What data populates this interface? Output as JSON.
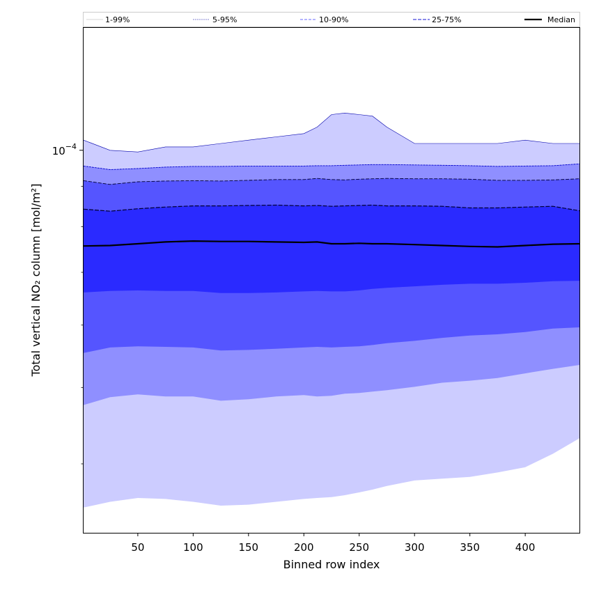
{
  "chart_data": {
    "type": "area",
    "xlabel": "Binned row index",
    "ylabel": "Total vertical NO₂ column [mol/m²]",
    "y_scale": "log",
    "xlim": [
      1,
      449
    ],
    "ylim": [
      3.27e-05,
      0.000143
    ],
    "x_ticks": [
      50,
      100,
      150,
      200,
      250,
      300,
      350,
      400
    ],
    "y_tick_labels": [
      {
        "value": 0.0001,
        "mantissa": "10",
        "exponent": "−4"
      }
    ],
    "grid": false,
    "legend": {
      "placement": "top",
      "entries": [
        {
          "label": "1-99%",
          "style": "band",
          "color": "#ccccff"
        },
        {
          "label": "5-95%",
          "style": "band",
          "color": "#8f8fff"
        },
        {
          "label": "10-90%",
          "style": "band",
          "color": "#5555ff"
        },
        {
          "label": "25-75%",
          "style": "band",
          "color": "#2a2aff"
        },
        {
          "label": "Median",
          "style": "line",
          "color": "#000000"
        }
      ]
    },
    "x": [
      1,
      25,
      50,
      75,
      100,
      125,
      150,
      175,
      200,
      212,
      225,
      237,
      250,
      262,
      275,
      300,
      325,
      350,
      375,
      400,
      425,
      449
    ],
    "series": [
      {
        "name": "1-99%",
        "color": "#ccccff",
        "upper": [
          0.000103,
          0.0001,
          9.95e-05,
          0.000101,
          0.000101,
          0.000102,
          0.000103,
          0.000104,
          0.000105,
          0.000107,
          0.000111,
          0.0001115,
          0.000111,
          0.0001105,
          0.000107,
          0.000102,
          0.000102,
          0.000102,
          0.000102,
          0.000103,
          0.000102,
          0.000102
        ],
        "lower": [
          3.52e-05,
          3.58e-05,
          3.62e-05,
          3.61e-05,
          3.58e-05,
          3.54e-05,
          3.55e-05,
          3.58e-05,
          3.61e-05,
          3.62e-05,
          3.63e-05,
          3.65e-05,
          3.68e-05,
          3.71e-05,
          3.75e-05,
          3.81e-05,
          3.83e-05,
          3.85e-05,
          3.9e-05,
          3.96e-05,
          4.12e-05,
          4.31e-05
        ]
      },
      {
        "name": "5-95%",
        "color": "#8f8fff",
        "upper": [
          9.55e-05,
          9.45e-05,
          9.48e-05,
          9.52e-05,
          9.54e-05,
          9.54e-05,
          9.55e-05,
          9.55e-05,
          9.55e-05,
          9.56e-05,
          9.56e-05,
          9.57e-05,
          9.58e-05,
          9.59e-05,
          9.59e-05,
          9.58e-05,
          9.57e-05,
          9.56e-05,
          9.54e-05,
          9.55e-05,
          9.56e-05,
          9.61e-05
        ],
        "lower": [
          4.75e-05,
          4.86e-05,
          4.9e-05,
          4.87e-05,
          4.87e-05,
          4.81e-05,
          4.83e-05,
          4.87e-05,
          4.89e-05,
          4.87e-05,
          4.88e-05,
          4.91e-05,
          4.92e-05,
          4.94e-05,
          4.96e-05,
          5.01e-05,
          5.07e-05,
          5.1e-05,
          5.14e-05,
          5.21e-05,
          5.28e-05,
          5.34e-05
        ]
      },
      {
        "name": "10-90%",
        "color": "#5555ff",
        "upper": [
          9.15e-05,
          9.05e-05,
          9.12e-05,
          9.14e-05,
          9.15e-05,
          9.14e-05,
          9.16e-05,
          9.18e-05,
          9.18e-05,
          9.21e-05,
          9.18e-05,
          9.17e-05,
          9.19e-05,
          9.2e-05,
          9.21e-05,
          9.2e-05,
          9.2e-05,
          9.19e-05,
          9.16e-05,
          9.16e-05,
          9.17e-05,
          9.2e-05
        ],
        "lower": [
          5.53e-05,
          5.62e-05,
          5.64e-05,
          5.63e-05,
          5.62e-05,
          5.57e-05,
          5.58e-05,
          5.6e-05,
          5.62e-05,
          5.63e-05,
          5.62e-05,
          5.63e-05,
          5.64e-05,
          5.66e-05,
          5.69e-05,
          5.73e-05,
          5.78e-05,
          5.82e-05,
          5.84e-05,
          5.88e-05,
          5.94e-05,
          5.96e-05
        ]
      },
      {
        "name": "25-75%",
        "color": "#2a2aff",
        "upper": [
          8.42e-05,
          8.37e-05,
          8.43e-05,
          8.47e-05,
          8.5e-05,
          8.5e-05,
          8.51e-05,
          8.52e-05,
          8.5e-05,
          8.51e-05,
          8.49e-05,
          8.5e-05,
          8.51e-05,
          8.52e-05,
          8.5e-05,
          8.5e-05,
          8.49e-05,
          8.45e-05,
          8.45e-05,
          8.47e-05,
          8.49e-05,
          8.38e-05
        ],
        "lower": [
          6.6e-05,
          6.63e-05,
          6.64e-05,
          6.63e-05,
          6.63e-05,
          6.59e-05,
          6.59e-05,
          6.6e-05,
          6.62e-05,
          6.63e-05,
          6.62e-05,
          6.62e-05,
          6.64e-05,
          6.67e-05,
          6.69e-05,
          6.72e-05,
          6.75e-05,
          6.77e-05,
          6.77e-05,
          6.79e-05,
          6.82e-05,
          6.83e-05
        ]
      },
      {
        "name": "Median",
        "color": "#000000",
        "values": [
          7.56e-05,
          7.57e-05,
          7.61e-05,
          7.65e-05,
          7.67e-05,
          7.66e-05,
          7.66e-05,
          7.65e-05,
          7.64e-05,
          7.65e-05,
          7.61e-05,
          7.61e-05,
          7.62e-05,
          7.61e-05,
          7.61e-05,
          7.59e-05,
          7.57e-05,
          7.55e-05,
          7.54e-05,
          7.57e-05,
          7.6e-05,
          7.61e-05
        ]
      }
    ]
  }
}
